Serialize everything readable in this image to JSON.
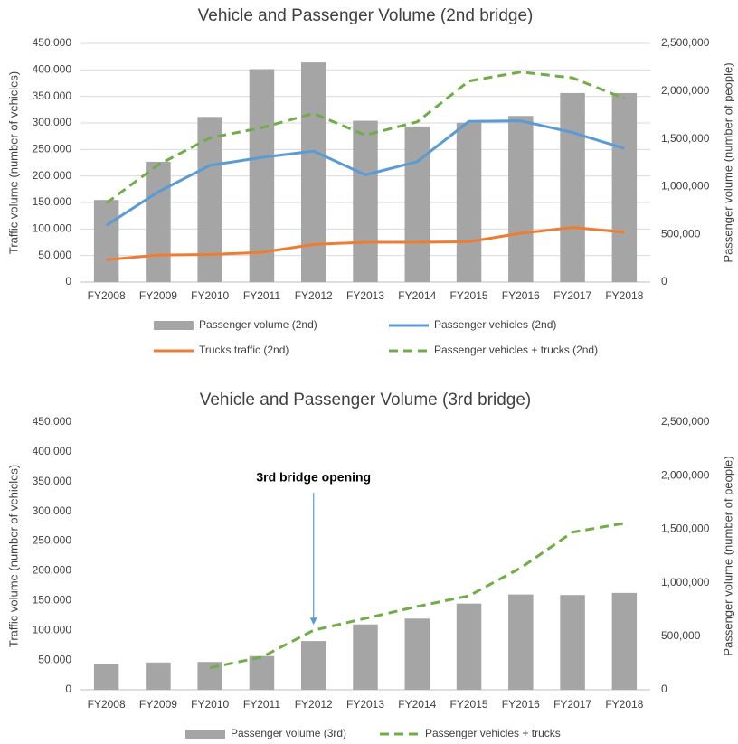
{
  "chart_data": [
    {
      "type": "combo",
      "title": "Vehicle and Passenger Volume (2nd bridge)",
      "y_label": "Traffic volume (number of vehicles)",
      "y2_label": "Passenger volume (number of people)",
      "categories": [
        "FY2008",
        "FY2009",
        "FY2010",
        "FY2011",
        "FY2012",
        "FY2013",
        "FY2014",
        "FY2015",
        "FY2016",
        "FY2017",
        "FY2018"
      ],
      "ylim": [
        0,
        450000
      ],
      "yticks": [
        0,
        {
          "value": 50000,
          "label": "50,000"
        },
        {
          "value": 100000,
          "label": "100,000"
        },
        {
          "value": 150000,
          "label": "150,000"
        },
        {
          "value": 200000,
          "label": "200,000"
        },
        {
          "value": 250000,
          "label": "250,000"
        },
        {
          "value": 300000,
          "label": "300,000"
        },
        {
          "value": 350000,
          "label": "350,000"
        },
        {
          "value": 400000,
          "label": "400,000"
        },
        {
          "value": 450000,
          "label": "450,000"
        }
      ],
      "y2lim": [
        0,
        2500000
      ],
      "y2ticks": [
        0,
        {
          "value": 500000,
          "label": "500,000"
        },
        {
          "value": 1000000,
          "label": "1,000,000"
        },
        {
          "value": 1500000,
          "label": "1,500,000"
        },
        {
          "value": 2000000,
          "label": "2,000,000"
        },
        {
          "value": 2500000,
          "label": "2,500,000"
        }
      ],
      "grid": true,
      "series": [
        {
          "name": "Passenger volume (2nd)",
          "type": "bar",
          "axis": "y2",
          "color": "#a5a5a5",
          "values": [
            860000,
            1260000,
            1730000,
            2230000,
            2300000,
            1690000,
            1630000,
            1670000,
            1740000,
            1980000,
            1980000
          ]
        },
        {
          "name": "Passenger vehicles (2nd)",
          "type": "line",
          "color": "#5b9bd5",
          "values": [
            107000,
            170000,
            220000,
            235000,
            247000,
            202000,
            227000,
            303000,
            304000,
            282000,
            252000
          ]
        },
        {
          "name": "Trucks traffic (2nd)",
          "type": "line",
          "color": "#ed7d31",
          "values": [
            42000,
            51000,
            52000,
            56000,
            71000,
            75000,
            75000,
            76000,
            92000,
            103000,
            94000
          ]
        },
        {
          "name": "Passenger vehicles + trucks (2nd)",
          "type": "line",
          "dashed": true,
          "color": "#70ad47",
          "values": [
            149000,
            221000,
            272000,
            291000,
            318000,
            277000,
            302000,
            379000,
            396000,
            385000,
            346000
          ]
        }
      ]
    },
    {
      "type": "combo",
      "title": "Vehicle and Passenger Volume (3rd bridge)",
      "y_label": "Traffic volume (number of vehicles)",
      "y2_label": "Passenger volume (number of people)",
      "categories": [
        "FY2008",
        "FY2009",
        "FY2010",
        "FY2011",
        "FY2012",
        "FY2013",
        "FY2014",
        "FY2015",
        "FY2016",
        "FY2017",
        "FY2018"
      ],
      "ylim": [
        0,
        450000
      ],
      "yticks": [
        0,
        {
          "value": 50000,
          "label": "50,000"
        },
        {
          "value": 100000,
          "label": "100,000"
        },
        {
          "value": 150000,
          "label": "150,000"
        },
        {
          "value": 200000,
          "label": "200,000"
        },
        {
          "value": 250000,
          "label": "250,000"
        },
        {
          "value": 300000,
          "label": "300,000"
        },
        {
          "value": 350000,
          "label": "350,000"
        },
        {
          "value": 400000,
          "label": "400,000"
        },
        {
          "value": 450000,
          "label": "450,000"
        }
      ],
      "y2lim": [
        0,
        2500000
      ],
      "y2ticks": [
        0,
        {
          "value": 500000,
          "label": "500,000"
        },
        {
          "value": 1000000,
          "label": "1,000,000"
        },
        {
          "value": 1500000,
          "label": "1,500,000"
        },
        {
          "value": 2000000,
          "label": "2,000,000"
        },
        {
          "value": 2500000,
          "label": "2,500,000"
        }
      ],
      "grid": false,
      "annotations": [
        {
          "text": "3rd bridge opening",
          "x": "FY2012",
          "value": 100000
        }
      ],
      "series": [
        {
          "name": "Passenger volume (3rd)",
          "type": "bar",
          "axis": "y2",
          "color": "#a5a5a5",
          "values": [
            245000,
            255000,
            260000,
            315000,
            455000,
            610000,
            665000,
            805000,
            890000,
            885000,
            905000
          ]
        },
        {
          "name": "Passenger vehicles + trucks",
          "type": "line",
          "dashed": true,
          "color": "#70ad47",
          "values": [
            null,
            null,
            37000,
            55000,
            100000,
            120000,
            140000,
            158000,
            205000,
            265000,
            280000
          ]
        }
      ]
    }
  ]
}
